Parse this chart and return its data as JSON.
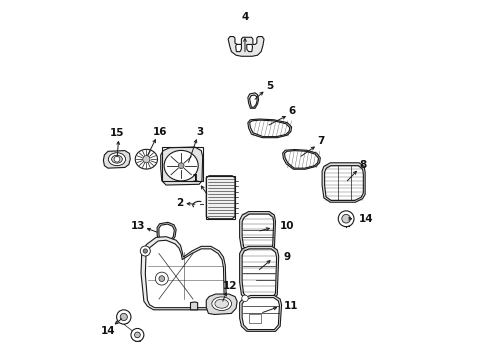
{
  "bg": "#ffffff",
  "lc": "#1a1a1a",
  "lw": 0.8,
  "fw": 4.9,
  "fh": 3.6,
  "dpi": 100,
  "labels": {
    "4": [
      0.5,
      0.968,
      0.5,
      0.9
    ],
    "5": [
      0.565,
      0.745,
      0.565,
      0.68
    ],
    "6": [
      0.64,
      0.68,
      0.64,
      0.618
    ],
    "7": [
      0.72,
      0.595,
      0.72,
      0.535
    ],
    "8": [
      0.855,
      0.53,
      0.82,
      0.475
    ],
    "3": [
      0.378,
      0.62,
      0.378,
      0.565
    ],
    "15": [
      0.148,
      0.625,
      0.175,
      0.59
    ],
    "16": [
      0.262,
      0.625,
      0.262,
      0.585
    ],
    "1": [
      0.39,
      0.492,
      0.43,
      0.47
    ],
    "2": [
      0.33,
      0.435,
      0.368,
      0.435
    ],
    "13": [
      0.21,
      0.37,
      0.258,
      0.36
    ],
    "10": [
      0.72,
      0.368,
      0.68,
      0.35
    ],
    "9": [
      0.77,
      0.285,
      0.73,
      0.28
    ],
    "14r": [
      0.85,
      0.39,
      0.808,
      0.39
    ],
    "12": [
      0.45,
      0.145,
      0.455,
      0.19
    ],
    "11": [
      0.76,
      0.148,
      0.722,
      0.158
    ],
    "14b": [
      0.128,
      0.09,
      0.168,
      0.108
    ]
  }
}
